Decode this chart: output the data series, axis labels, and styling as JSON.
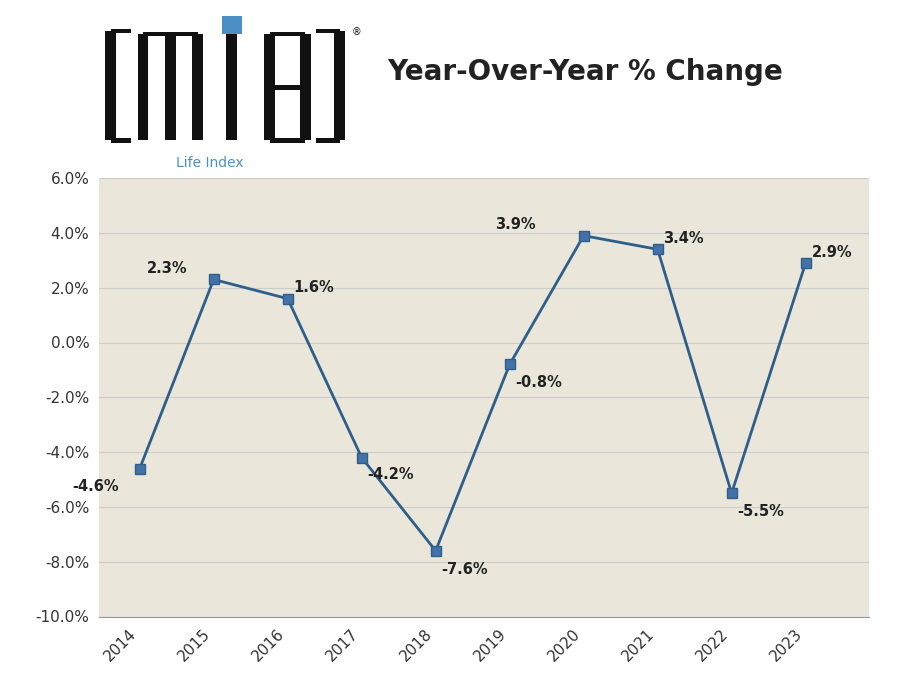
{
  "years": [
    2014,
    2015,
    2016,
    2017,
    2018,
    2019,
    2020,
    2021,
    2022,
    2023
  ],
  "values": [
    -4.6,
    2.3,
    1.6,
    -4.2,
    -7.6,
    -0.8,
    3.9,
    3.4,
    -5.5,
    2.9
  ],
  "line_color": "#2E5F8A",
  "marker_face": "#4472A8",
  "background_color": "#EAE6DA",
  "outer_background": "#FFFFFF",
  "title": "Year-Over-Year % Change",
  "title_fontsize": 20,
  "title_color": "#222222",
  "ylim": [
    -10.0,
    6.0
  ],
  "yticks": [
    -10.0,
    -8.0,
    -6.0,
    -4.0,
    -2.0,
    0.0,
    2.0,
    4.0,
    6.0
  ],
  "grid_color": "#CCCCCC",
  "label_fontsize": 10.5,
  "label_color": "#222222",
  "mib_blue": "#4A90C4",
  "logo_black": "#111111",
  "life_index_color": "#4A90C4"
}
